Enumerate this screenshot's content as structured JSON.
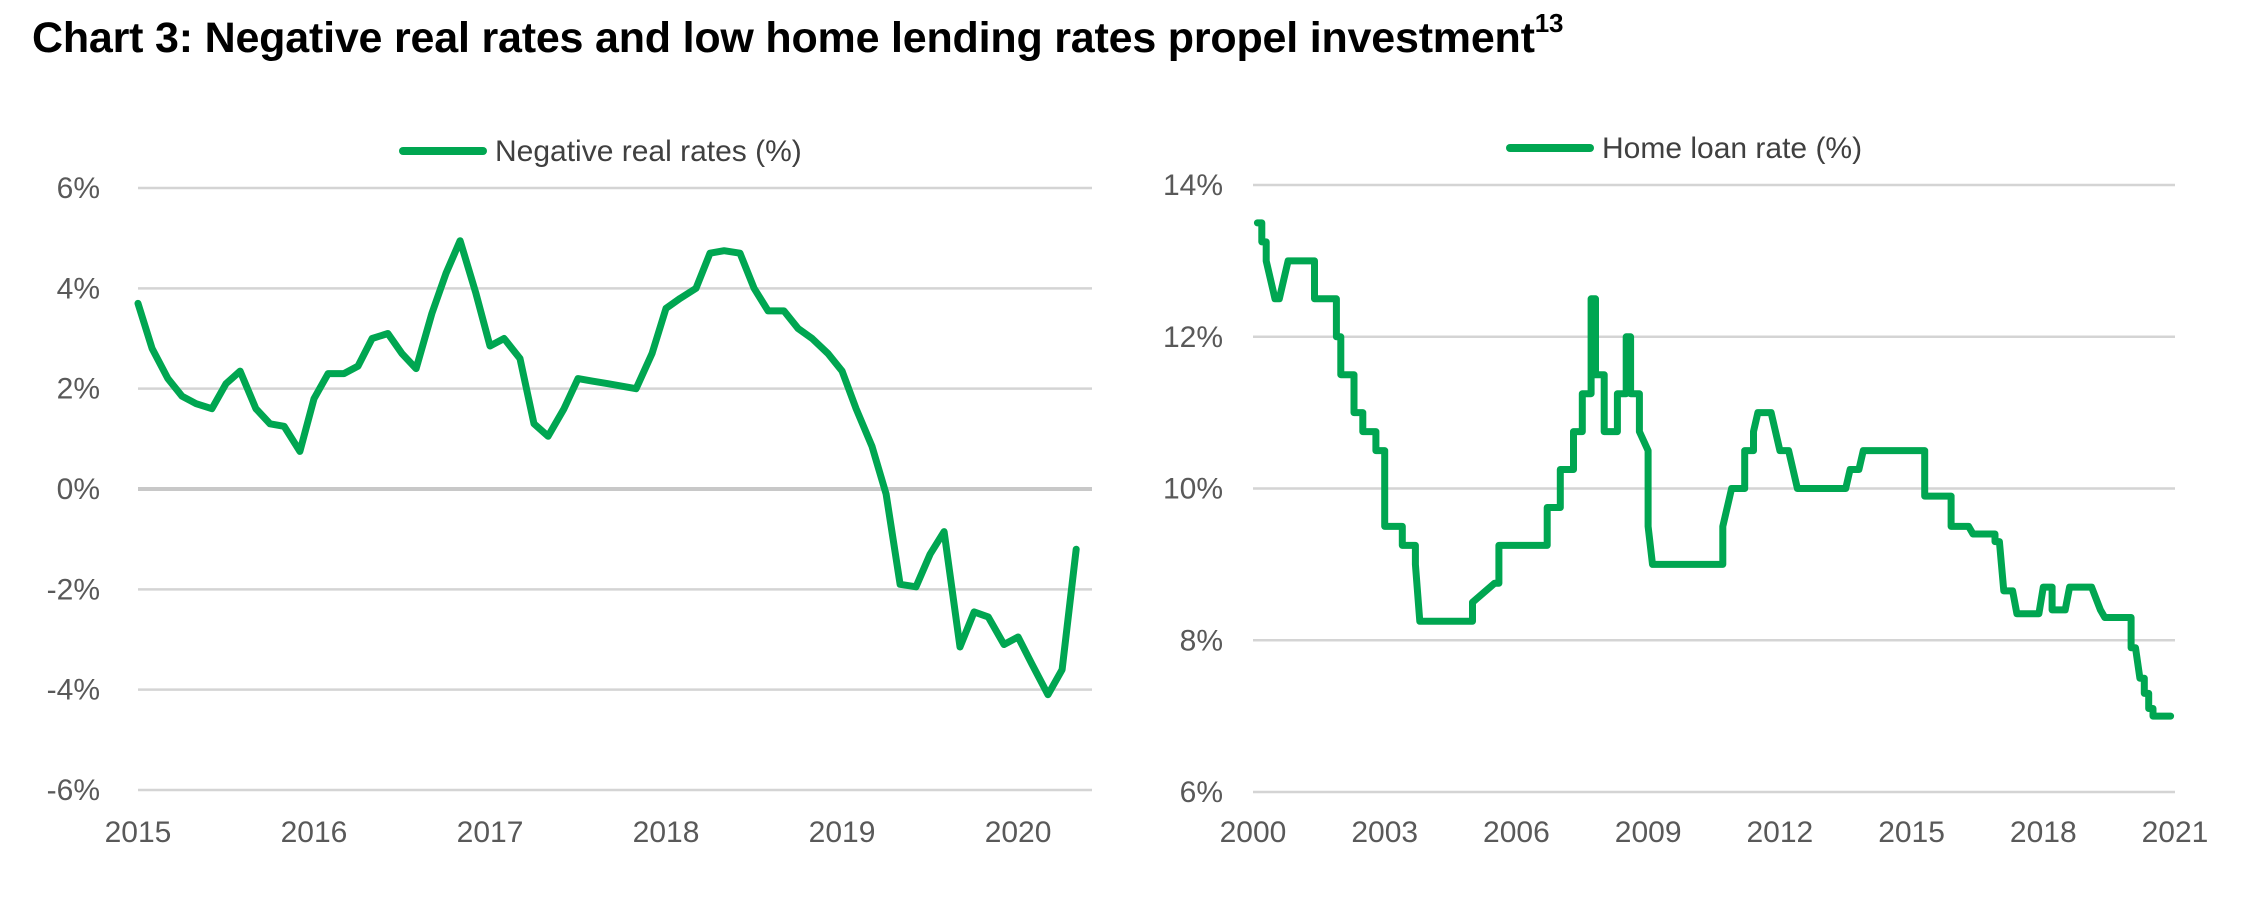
{
  "page": {
    "title": "Chart 3: Negative real rates and low home lending rates propel investment",
    "title_footnote": "13"
  },
  "chart_data": [
    {
      "type": "line",
      "legend": "Negative real rates (%)",
      "legend_position": "top-center",
      "grid": true,
      "color": "#00A651",
      "ylim": [
        -6,
        6
      ],
      "yticks": [
        "6%",
        "4%",
        "2%",
        "0%",
        "-2%",
        "-4%",
        "-6%"
      ],
      "ytick_values": [
        6,
        4,
        2,
        0,
        -2,
        -4,
        -6
      ],
      "xlim": [
        2015,
        2020.42
      ],
      "xticks": [
        "2015",
        "2016",
        "2017",
        "2018",
        "2019",
        "2020"
      ],
      "xtick_values": [
        2015,
        2016,
        2017,
        2018,
        2019,
        2020
      ],
      "x": [
        2015.0,
        2015.08,
        2015.17,
        2015.25,
        2015.33,
        2015.42,
        2015.5,
        2015.58,
        2015.67,
        2015.75,
        2015.83,
        2015.92,
        2016.0,
        2016.08,
        2016.17,
        2016.25,
        2016.33,
        2016.42,
        2016.5,
        2016.58,
        2016.67,
        2016.75,
        2016.83,
        2016.92,
        2017.0,
        2017.08,
        2017.17,
        2017.25,
        2017.33,
        2017.42,
        2017.5,
        2017.58,
        2017.67,
        2017.75,
        2017.83,
        2017.92,
        2018.0,
        2018.08,
        2018.17,
        2018.25,
        2018.33,
        2018.42,
        2018.5,
        2018.58,
        2018.67,
        2018.75,
        2018.83,
        2018.92,
        2019.0,
        2019.08,
        2019.17,
        2019.25,
        2019.33,
        2019.42,
        2019.5,
        2019.58,
        2019.67,
        2019.75,
        2019.83,
        2019.92,
        2020.0,
        2020.08,
        2020.17,
        2020.25,
        2020.33
      ],
      "y": [
        3.7,
        2.8,
        2.2,
        1.85,
        1.7,
        1.6,
        2.1,
        2.35,
        1.6,
        1.3,
        1.25,
        0.75,
        1.8,
        2.3,
        2.3,
        2.45,
        3.0,
        3.1,
        2.7,
        2.4,
        3.5,
        4.3,
        4.95,
        3.9,
        2.85,
        3.0,
        2.6,
        1.3,
        1.05,
        1.6,
        2.2,
        2.15,
        2.1,
        2.05,
        2.0,
        2.7,
        3.6,
        3.8,
        4.0,
        4.7,
        4.75,
        4.7,
        4.0,
        3.55,
        3.55,
        3.2,
        3.0,
        2.7,
        2.35,
        1.6,
        0.85,
        -0.1,
        -1.9,
        -1.95,
        -1.3,
        -0.85,
        -3.15,
        -2.45,
        -2.55,
        -3.1,
        -2.95,
        -3.5,
        -4.1,
        -3.6,
        -1.2
      ]
    },
    {
      "type": "line",
      "legend": "Home loan rate (%)",
      "legend_position": "top-center",
      "grid": true,
      "color": "#00A651",
      "ylim": [
        6,
        14
      ],
      "yticks": [
        "14%",
        "12%",
        "10%",
        "8%",
        "6%"
      ],
      "ytick_values": [
        14,
        12,
        10,
        8,
        6
      ],
      "xlim": [
        2000,
        2021
      ],
      "xticks": [
        "2000",
        "2003",
        "2006",
        "2009",
        "2012",
        "2015",
        "2018",
        "2021"
      ],
      "xtick_values": [
        2000,
        2003,
        2006,
        2009,
        2012,
        2015,
        2018,
        2021
      ],
      "x": [
        2000.1,
        2000.2,
        2000.2,
        2000.3,
        2000.3,
        2000.5,
        2000.6,
        2000.6,
        2000.8,
        2000.9,
        2000.9,
        2001.4,
        2001.4,
        2001.6,
        2001.6,
        2001.9,
        2001.9,
        2002.0,
        2002.0,
        2002.1,
        2002.1,
        2002.3,
        2002.3,
        2002.5,
        2002.5,
        2002.8,
        2002.8,
        2003.0,
        2003.0,
        2003.3,
        2003.3,
        2003.4,
        2003.4,
        2003.7,
        2003.7,
        2003.8,
        2003.8,
        2005.0,
        2005.0,
        2005.5,
        2005.5,
        2005.6,
        2005.6,
        2006.4,
        2006.4,
        2006.7,
        2006.7,
        2007.0,
        2007.0,
        2007.3,
        2007.3,
        2007.5,
        2007.5,
        2007.7,
        2007.7,
        2007.8,
        2007.8,
        2008.0,
        2008.0,
        2008.3,
        2008.3,
        2008.5,
        2008.5,
        2008.6,
        2008.6,
        2008.8,
        2008.8,
        2009.0,
        2009.0,
        2009.1,
        2009.1,
        2009.2,
        2009.3,
        2010.7,
        2010.7,
        2010.8,
        2010.9,
        2011.2,
        2011.2,
        2011.4,
        2011.4,
        2011.5,
        2011.6,
        2011.8,
        2012.0,
        2012.2,
        2012.3,
        2012.4,
        2012.5,
        2012.6,
        2012.8,
        2013.5,
        2013.6,
        2013.8,
        2013.9,
        2015.3,
        2015.3,
        2015.9,
        2015.9,
        2016.3,
        2016.4,
        2016.9,
        2016.9,
        2017.0,
        2017.1,
        2017.2,
        2017.3,
        2017.4,
        2017.5,
        2017.6,
        2017.7,
        2017.8,
        2017.9,
        2018.0,
        2018.2,
        2018.2,
        2018.3,
        2018.4,
        2018.5,
        2018.6,
        2018.8,
        2018.9,
        2019.0,
        2019.1,
        2019.3,
        2019.4,
        2019.5,
        2019.6,
        2019.6,
        2020.0,
        2020.0,
        2020.1,
        2020.2,
        2020.3,
        2020.3,
        2020.4,
        2020.4,
        2020.5,
        2020.5,
        2020.6,
        2020.6,
        2020.7,
        2020.9
      ],
      "y": [
        13.5,
        13.5,
        13.25,
        13.25,
        13.0,
        12.5,
        12.5,
        12.5,
        13.0,
        13.0,
        13.0,
        13.0,
        12.5,
        12.5,
        12.5,
        12.5,
        12.0,
        12.0,
        11.5,
        11.5,
        11.5,
        11.5,
        11.0,
        11.0,
        10.75,
        10.75,
        10.5,
        10.5,
        9.5,
        9.5,
        9.5,
        9.5,
        9.25,
        9.25,
        9.0,
        8.25,
        8.25,
        8.25,
        8.5,
        8.75,
        8.75,
        8.75,
        9.25,
        9.25,
        9.25,
        9.25,
        9.75,
        9.75,
        10.25,
        10.25,
        10.75,
        10.75,
        11.25,
        11.25,
        12.5,
        12.5,
        11.5,
        11.5,
        10.75,
        10.75,
        11.25,
        11.25,
        12.0,
        12.0,
        11.25,
        11.25,
        10.75,
        10.5,
        9.5,
        9.0,
        9.0,
        9.0,
        9.0,
        9.0,
        9.5,
        9.75,
        10.0,
        10.0,
        10.5,
        10.5,
        10.75,
        11.0,
        11.0,
        11.0,
        10.5,
        10.5,
        10.25,
        10.0,
        10.0,
        10.0,
        10.0,
        10.0,
        10.25,
        10.25,
        10.5,
        10.5,
        9.9,
        9.9,
        9.5,
        9.5,
        9.4,
        9.4,
        9.3,
        9.3,
        8.65,
        8.65,
        8.65,
        8.35,
        8.35,
        8.35,
        8.35,
        8.35,
        8.35,
        8.7,
        8.7,
        8.4,
        8.4,
        8.4,
        8.4,
        8.7,
        8.7,
        8.7,
        8.7,
        8.7,
        8.4,
        8.3,
        8.3,
        8.3,
        8.3,
        8.3,
        7.9,
        7.9,
        7.5,
        7.5,
        7.3,
        7.3,
        7.1,
        7.1,
        7.0,
        7.0,
        7.0,
        7.0,
        7.0
      ]
    }
  ]
}
